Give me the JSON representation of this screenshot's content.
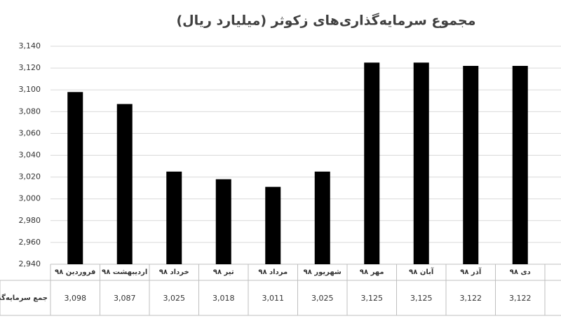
{
  "chart_data": {
    "type": "bar",
    "title": "مجموع سرمایه‌گذاری‌های زکوثر (میلیارد ریال)",
    "categories": [
      "فروردین ۹۸",
      "اردیبهشت ۹۸",
      "خرداد ۹۸",
      "تیر ۹۸",
      "مرداد ۹۸",
      "شهریور ۹۸",
      "مهر ۹۸",
      "آبان ۹۸",
      "آذر ۹۸",
      "دی ۹۸"
    ],
    "series": [
      {
        "name": "جمع سرمایه‌گذاری (میلیارد ریال)",
        "color": "#000000",
        "values": [
          3098,
          3087,
          3025,
          3018,
          3011,
          3025,
          3125,
          3125,
          3122,
          3122
        ],
        "value_labels": [
          "3,098",
          "3,087",
          "3,025",
          "3,018",
          "3,011",
          "3,025",
          "3,125",
          "3,125",
          "3,122",
          "3,122"
        ]
      }
    ],
    "ylim": [
      2940,
      3140
    ],
    "yticks": [
      {
        "value": 2940,
        "label": "2,940"
      },
      {
        "value": 2960,
        "label": "2,960"
      },
      {
        "value": 2980,
        "label": "2,980"
      },
      {
        "value": 3000,
        "label": "3,000"
      },
      {
        "value": 3020,
        "label": "3,020"
      },
      {
        "value": 3040,
        "label": "3,040"
      },
      {
        "value": 3060,
        "label": "3,060"
      },
      {
        "value": 3080,
        "label": "3,080"
      },
      {
        "value": 3100,
        "label": "3,100"
      },
      {
        "value": 3120,
        "label": "3,120"
      },
      {
        "value": 3140,
        "label": "3,140"
      }
    ],
    "grid": true
  }
}
